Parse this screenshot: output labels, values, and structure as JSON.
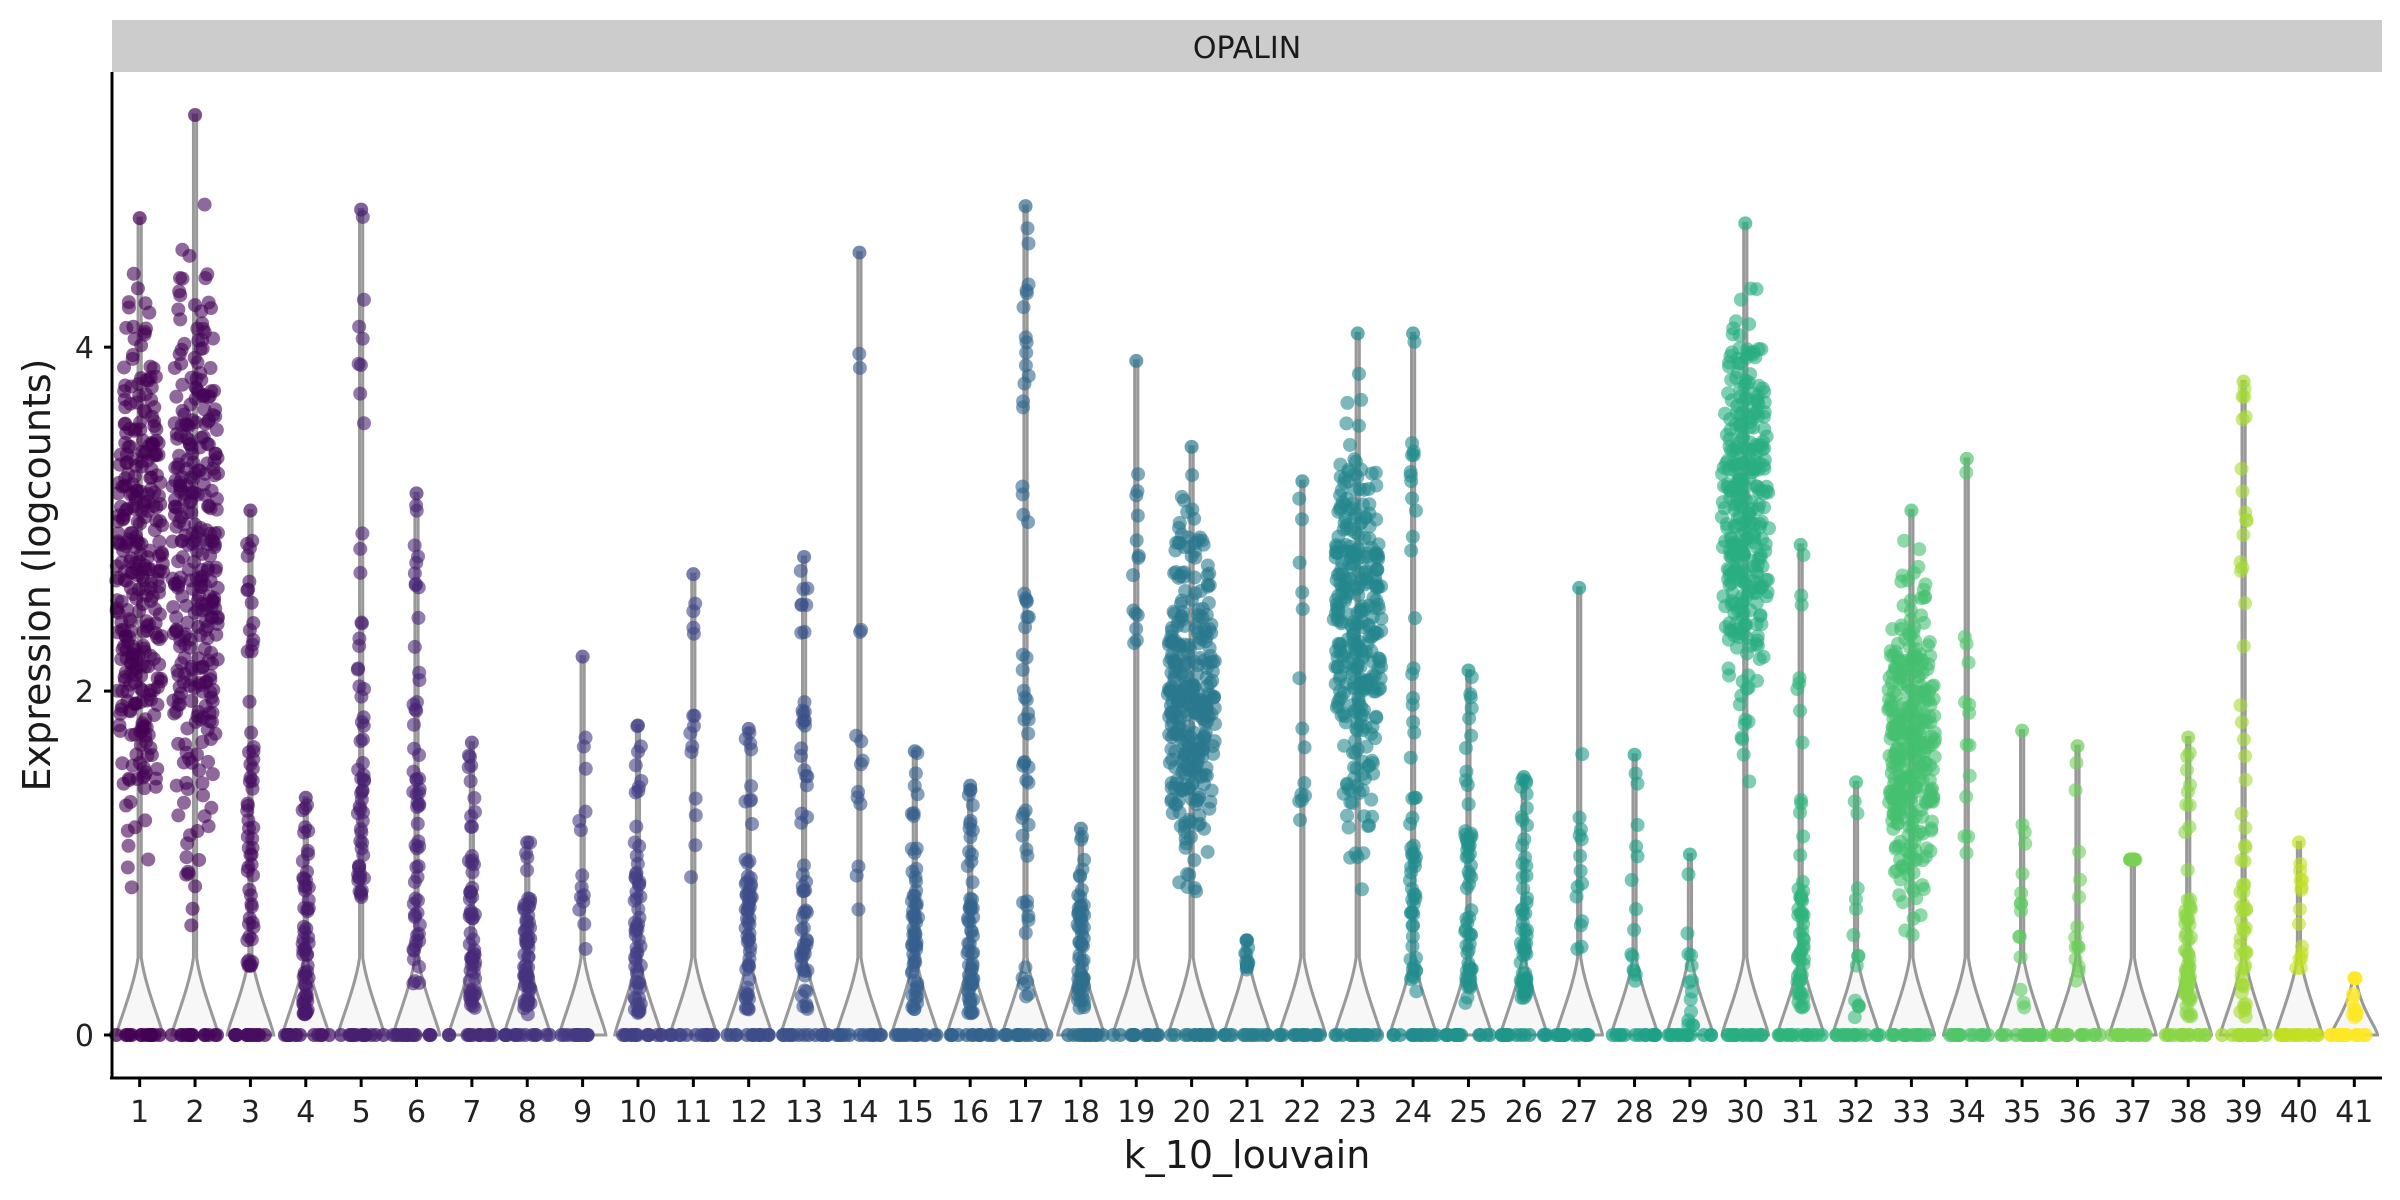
{
  "chart_data": {
    "type": "violin",
    "panel_title": "OPALIN",
    "xlabel": "k_10_louvain",
    "ylabel": "Expression (logcounts)",
    "ylim": [
      -0.25,
      5.6
    ],
    "y_ticks": [
      0,
      2,
      4
    ],
    "grid": false,
    "legend": "none",
    "categories": [
      "1",
      "2",
      "3",
      "4",
      "5",
      "6",
      "7",
      "8",
      "9",
      "10",
      "11",
      "12",
      "13",
      "14",
      "15",
      "16",
      "17",
      "18",
      "19",
      "20",
      "21",
      "22",
      "23",
      "24",
      "25",
      "26",
      "27",
      "28",
      "29",
      "30",
      "31",
      "32",
      "33",
      "34",
      "35",
      "36",
      "37",
      "38",
      "39",
      "40",
      "41"
    ],
    "series": [
      {
        "cluster": "1",
        "max": 4.75,
        "min_expr": 0.5,
        "center": 2.8,
        "density": "high",
        "color": "#440154"
      },
      {
        "cluster": "2",
        "max": 5.35,
        "min_expr": 0.22,
        "center": 3.0,
        "density": "high",
        "color": "#450559"
      },
      {
        "cluster": "3",
        "max": 3.05,
        "min_expr": 0.4,
        "center": 1.5,
        "density": "medium",
        "color": "#470e61"
      },
      {
        "cluster": "4",
        "max": 1.38,
        "min_expr": 0.12,
        "center": 0.6,
        "density": "medium",
        "color": "#48186a"
      },
      {
        "cluster": "5",
        "max": 4.8,
        "min_expr": 0.8,
        "center": 2.0,
        "density": "medium",
        "color": "#481f70"
      },
      {
        "cluster": "6",
        "max": 3.15,
        "min_expr": 0.3,
        "center": 1.4,
        "density": "medium",
        "color": "#482576"
      },
      {
        "cluster": "7",
        "max": 1.7,
        "min_expr": 0.15,
        "center": 0.6,
        "density": "medium",
        "color": "#472c7a"
      },
      {
        "cluster": "8",
        "max": 1.12,
        "min_expr": 0.12,
        "center": 0.5,
        "density": "medium",
        "color": "#46337f"
      },
      {
        "cluster": "9",
        "max": 2.2,
        "min_expr": 0.5,
        "center": 1.0,
        "density": "low",
        "color": "#443a83"
      },
      {
        "cluster": "10",
        "max": 1.8,
        "min_expr": 0.12,
        "center": 0.8,
        "density": "medium",
        "color": "#424086"
      },
      {
        "cluster": "11",
        "max": 2.68,
        "min_expr": 0.9,
        "center": 1.6,
        "density": "low",
        "color": "#404688"
      },
      {
        "cluster": "12",
        "max": 1.78,
        "min_expr": 0.12,
        "center": 0.6,
        "density": "medium",
        "color": "#3e4c8a"
      },
      {
        "cluster": "13",
        "max": 2.78,
        "min_expr": 0.15,
        "center": 0.7,
        "density": "medium",
        "color": "#3b528b"
      },
      {
        "cluster": "14",
        "max": 4.55,
        "min_expr": 0.7,
        "center": 2.3,
        "density": "low",
        "color": "#38588c"
      },
      {
        "cluster": "15",
        "max": 1.65,
        "min_expr": 0.15,
        "center": 0.5,
        "density": "medium",
        "color": "#355f8d"
      },
      {
        "cluster": "16",
        "max": 1.45,
        "min_expr": 0.12,
        "center": 0.5,
        "density": "medium",
        "color": "#33638d"
      },
      {
        "cluster": "17",
        "max": 4.82,
        "min_expr": 0.15,
        "center": 2.4,
        "density": "medium",
        "color": "#31688e"
      },
      {
        "cluster": "18",
        "max": 1.2,
        "min_expr": 0.15,
        "center": 0.6,
        "density": "medium",
        "color": "#2e6e8e"
      },
      {
        "cluster": "19",
        "max": 3.92,
        "min_expr": 2.25,
        "center": 3.0,
        "density": "low",
        "color": "#2c728e"
      },
      {
        "cluster": "20",
        "max": 3.42,
        "min_expr": 0.5,
        "center": 1.9,
        "density": "high",
        "color": "#2a788e"
      },
      {
        "cluster": "21",
        "max": 0.55,
        "min_expr": 0.38,
        "center": 0.45,
        "density": "low",
        "color": "#287d8e"
      },
      {
        "cluster": "22",
        "max": 3.22,
        "min_expr": 1.25,
        "center": 2.2,
        "density": "low",
        "color": "#26828e"
      },
      {
        "cluster": "23",
        "max": 4.08,
        "min_expr": 0.7,
        "center": 2.2,
        "density": "high",
        "color": "#24878e"
      },
      {
        "cluster": "24",
        "max": 4.08,
        "min_expr": 0.25,
        "center": 0.8,
        "density": "medium",
        "color": "#228c8d"
      },
      {
        "cluster": "25",
        "max": 2.12,
        "min_expr": 0.15,
        "center": 0.9,
        "density": "medium",
        "color": "#21918c"
      },
      {
        "cluster": "26",
        "max": 1.5,
        "min_expr": 0.2,
        "center": 0.7,
        "density": "medium",
        "color": "#1f968b"
      },
      {
        "cluster": "27",
        "max": 2.6,
        "min_expr": 0.5,
        "center": 1.0,
        "density": "low",
        "color": "#1f9a8a"
      },
      {
        "cluster": "28",
        "max": 1.63,
        "min_expr": 0.3,
        "center": 0.8,
        "density": "low",
        "color": "#1fa088"
      },
      {
        "cluster": "29",
        "max": 1.05,
        "min_expr": 0.05,
        "center": 0.3,
        "density": "low",
        "color": "#22a785"
      },
      {
        "cluster": "30",
        "max": 4.72,
        "min_expr": 1.35,
        "center": 2.9,
        "density": "high",
        "color": "#28ae80"
      },
      {
        "cluster": "31",
        "max": 2.85,
        "min_expr": 0.15,
        "center": 0.6,
        "density": "medium",
        "color": "#2fb47c"
      },
      {
        "cluster": "32",
        "max": 1.47,
        "min_expr": 0.1,
        "center": 0.5,
        "density": "low",
        "color": "#38b977"
      },
      {
        "cluster": "33",
        "max": 3.05,
        "min_expr": 0.38,
        "center": 1.7,
        "density": "high",
        "color": "#44bf70"
      },
      {
        "cluster": "34",
        "max": 3.35,
        "min_expr": 1.05,
        "center": 2.0,
        "density": "low",
        "color": "#51c56a"
      },
      {
        "cluster": "35",
        "max": 1.77,
        "min_expr": 0.15,
        "center": 0.7,
        "density": "low",
        "color": "#5ec962"
      },
      {
        "cluster": "36",
        "max": 1.68,
        "min_expr": 0.25,
        "center": 0.6,
        "density": "low",
        "color": "#6ccd5a"
      },
      {
        "cluster": "37",
        "max": 1.02,
        "min_expr": 1.02,
        "center": 1.02,
        "density": "low",
        "color": "#7ad151"
      },
      {
        "cluster": "38",
        "max": 1.73,
        "min_expr": 0.1,
        "center": 0.5,
        "density": "medium",
        "color": "#8bd646"
      },
      {
        "cluster": "39",
        "max": 3.8,
        "min_expr": 0.1,
        "center": 0.6,
        "density": "medium",
        "color": "#a5db36"
      },
      {
        "cluster": "40",
        "max": 1.12,
        "min_expr": 0.38,
        "center": 0.7,
        "density": "low",
        "color": "#c2df23"
      },
      {
        "cluster": "41",
        "max": 0.33,
        "min_expr": 0.1,
        "center": 0.2,
        "density": "low",
        "color": "#fde725"
      }
    ]
  }
}
